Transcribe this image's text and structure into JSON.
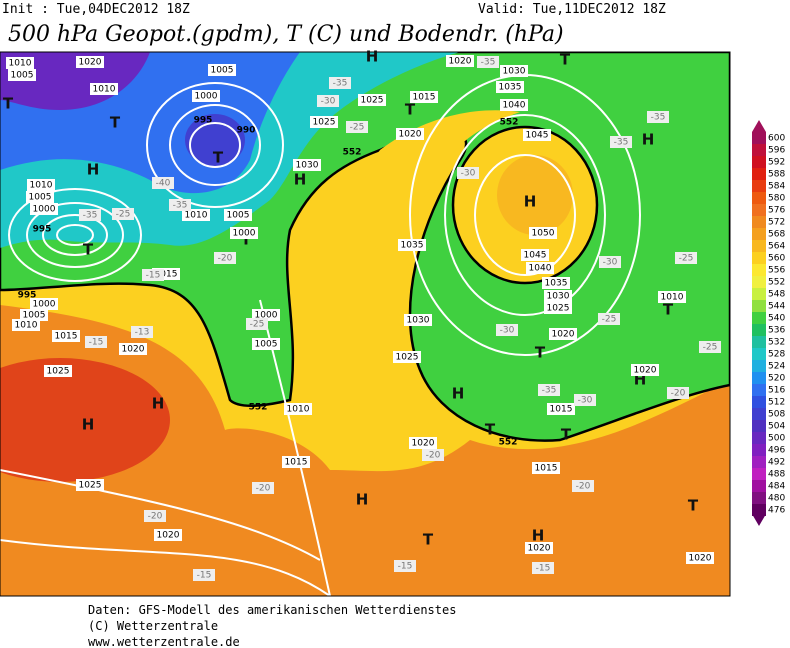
{
  "header": {
    "init": "Init : Tue,04DEC2012 18Z",
    "valid": "Valid: Tue,11DEC2012 18Z",
    "title": "500 hPa Geopot.(gpdm), T (C) und Bodendr. (hPa)"
  },
  "colorbar": {
    "levels": [
      600,
      596,
      592,
      588,
      584,
      580,
      576,
      572,
      568,
      564,
      560,
      556,
      552,
      548,
      544,
      540,
      536,
      532,
      528,
      524,
      520,
      516,
      512,
      508,
      504,
      500,
      496,
      492,
      488,
      484,
      480,
      476
    ],
    "colors": [
      "#a0105a",
      "#c0103a",
      "#d01020",
      "#e02010",
      "#e83c10",
      "#ee5a10",
      "#f07020",
      "#f08a20",
      "#f4a020",
      "#f8b820",
      "#fcd020",
      "#fce830",
      "#f0f040",
      "#c8f040",
      "#90e040",
      "#40d040",
      "#20c060",
      "#20c0a0",
      "#20c8c8",
      "#20b0e0",
      "#2090f0",
      "#3070f0",
      "#3050e0",
      "#4040d0",
      "#5030c0",
      "#6828c0",
      "#8020c0",
      "#a020c0",
      "#c020c0",
      "#a010a0",
      "#801080",
      "#600060"
    ]
  },
  "map": {
    "labels": [
      "H",
      "H",
      "H",
      "H",
      "H",
      "H",
      "H",
      "H",
      "H",
      "H",
      "H",
      "T",
      "T",
      "T",
      "T",
      "T",
      "T",
      "T",
      "T",
      "T",
      "T",
      "T",
      "T",
      "T",
      "1010",
      "1005",
      "1020",
      "1010",
      "1005",
      "1000",
      "995",
      "990",
      "1025",
      "1030",
      "1025",
      "1015",
      "1020",
      "1020",
      "1030",
      "1035",
      "1040",
      "1045",
      "1050",
      "1045",
      "1040",
      "1035",
      "1030",
      "1025",
      "1020",
      "1035",
      "1030",
      "1025",
      "1010",
      "1005",
      "1000",
      "995",
      "995",
      "1000",
      "1005",
      "1010",
      "1015",
      "1020",
      "1025",
      "1015",
      "1010",
      "1005",
      "1000",
      "1000",
      "1005",
      "1010",
      "1015",
      "1020",
      "1015",
      "1015",
      "1025",
      "1020",
      "1020",
      "1020",
      "1010",
      "1020",
      "-35",
      "-25",
      "-15",
      "-15",
      "-13",
      "-20",
      "-25",
      "-35",
      "-40",
      "-35",
      "-30",
      "-25",
      "-35",
      "-30",
      "-30",
      "-35",
      "-35",
      "-25",
      "-25",
      "-30",
      "-35",
      "-30",
      "-25",
      "-20",
      "-20",
      "-20",
      "-20",
      "-15",
      "-15",
      "-15",
      "-20",
      "552",
      "552",
      "552",
      "552"
    ]
  },
  "footer": {
    "lines": [
      "Daten: GFS-Modell des amerikanischen Wetterdienstes",
      "(C) Wetterzentrale",
      "www.wetterzentrale.de"
    ]
  }
}
